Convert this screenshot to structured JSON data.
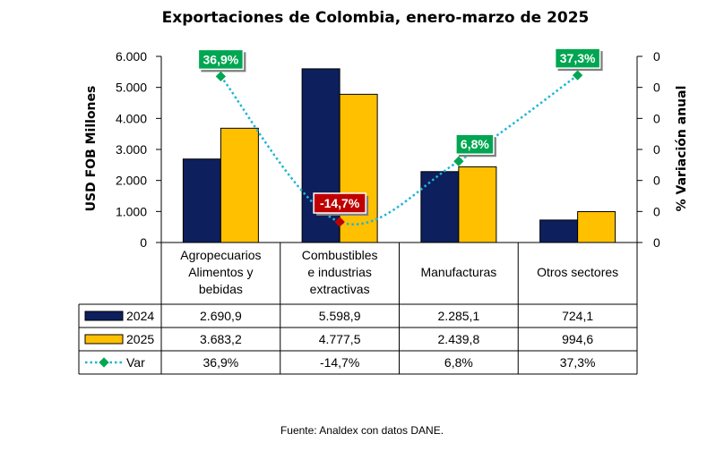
{
  "chart_data": {
    "type": "bar",
    "title": "Exportaciones de Colombia, enero-marzo de 2025",
    "ylabel": "USD FOB Millones",
    "y2label": "% Variación anual",
    "ylim": [
      0,
      6000
    ],
    "yticks": [
      "0",
      "1.000",
      "2.000",
      "3.000",
      "4.000",
      "5.000",
      "6.000"
    ],
    "y2ticks": [
      "0",
      "0",
      "0",
      "0",
      "0",
      "0",
      "0"
    ],
    "categories": [
      [
        "Agropecuarios",
        "Alimentos y",
        "bebidas"
      ],
      [
        "Combustibles",
        "e industrias",
        "extractivas"
      ],
      [
        "Manufacturas"
      ],
      [
        "Otros sectores"
      ]
    ],
    "series": [
      {
        "name": "2024",
        "type": "bar",
        "color": "#0d1f5c",
        "values": [
          2690.9,
          5598.9,
          2285.1,
          724.1
        ],
        "labels": [
          "2.690,9",
          "5.598,9",
          "2.285,1",
          "724,1"
        ]
      },
      {
        "name": "2025",
        "type": "bar",
        "color": "#ffc000",
        "values": [
          3683.2,
          4777.5,
          2439.8,
          994.6
        ],
        "labels": [
          "3.683,2",
          "4.777,5",
          "2.439,8",
          "994,6"
        ]
      },
      {
        "name": "Var",
        "type": "line",
        "color": "#1fb5d6",
        "values": [
          36.9,
          -14.7,
          6.8,
          37.3
        ],
        "labels": [
          "36,9%",
          "-14,7%",
          "6,8%",
          "37,3%"
        ]
      }
    ],
    "grid": false,
    "legend": "table",
    "positive_label_color": "#00a651",
    "negative_label_color": "#c00000"
  },
  "source": "Fuente: Analdex con datos DANE."
}
